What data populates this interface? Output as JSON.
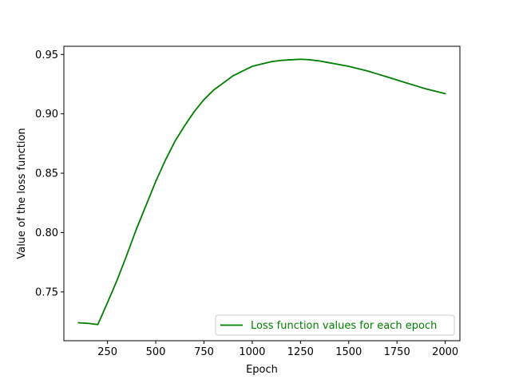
{
  "chart_data": {
    "type": "line",
    "title": "",
    "xlabel": "Epoch",
    "ylabel": "Value of the loss function",
    "xlim": [
      24,
      2076
    ],
    "ylim": [
      0.7089,
      0.9569
    ],
    "xticks": [
      250,
      500,
      750,
      1000,
      1250,
      1500,
      1750,
      2000
    ],
    "xtick_labels": [
      "250",
      "500",
      "750",
      "1000",
      "1250",
      "1500",
      "1750",
      "2000"
    ],
    "yticks": [
      0.75,
      0.8,
      0.85,
      0.9,
      0.95
    ],
    "ytick_labels": [
      "0.75",
      "0.80",
      "0.85",
      "0.90",
      "0.95"
    ],
    "grid": false,
    "legend_position": "lower-right",
    "series": [
      {
        "name": "Loss function values for each epoch",
        "color": "#008000",
        "x": [
          100,
          150,
          200,
          250,
          300,
          350,
          400,
          450,
          500,
          550,
          600,
          650,
          700,
          750,
          800,
          850,
          900,
          950,
          1000,
          1050,
          1100,
          1150,
          1200,
          1250,
          1300,
          1350,
          1400,
          1450,
          1500,
          1550,
          1600,
          1650,
          1700,
          1750,
          1800,
          1850,
          1900,
          1950,
          2000
        ],
        "y": [
          0.724,
          0.7235,
          0.7225,
          0.741,
          0.76,
          0.781,
          0.803,
          0.823,
          0.843,
          0.861,
          0.877,
          0.89,
          0.902,
          0.912,
          0.92,
          0.926,
          0.932,
          0.936,
          0.94,
          0.942,
          0.944,
          0.945,
          0.9455,
          0.946,
          0.9455,
          0.9445,
          0.943,
          0.9415,
          0.94,
          0.938,
          0.936,
          0.9335,
          0.931,
          0.9285,
          0.926,
          0.9235,
          0.921,
          0.919,
          0.917
        ]
      }
    ]
  }
}
